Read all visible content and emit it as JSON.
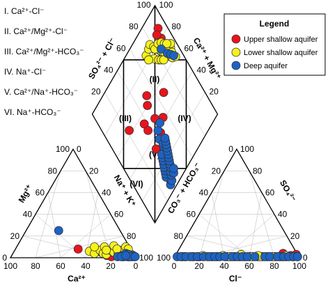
{
  "chart_data": {
    "type": "scatter",
    "subtype": "piper-diagram",
    "hydrochemical_facies": [
      {
        "id": "hf-1",
        "text": "I. Ca²⁺-Cl⁻"
      },
      {
        "id": "hf-2",
        "text": "II. Ca²⁺/Mg²⁺-Cl⁻"
      },
      {
        "id": "hf-3",
        "text": "III. Ca²⁺/Mg²⁺-HCO₃⁻"
      },
      {
        "id": "hf-4",
        "text": "IV. Na⁺-Cl⁻"
      },
      {
        "id": "hf-5",
        "text": "V. Ca²⁺/Na⁺-HCO₃⁻"
      },
      {
        "id": "hf-6",
        "text": "VI. Na⁺-HCO₃⁻"
      }
    ],
    "field_labels": [
      "(I)",
      "(II)",
      "(III)",
      "(IV)",
      "(V)",
      "(VI)"
    ],
    "axis_titles": {
      "cation_x": "Ca²⁺",
      "cation_side": "Mg²⁺",
      "cation_right": "Na⁺ + K⁺",
      "anion_x": "Cl⁻",
      "anion_side": "SO₄²⁻",
      "anion_left": "CO₃⁻ + HCO₃⁻",
      "diamond_left": "SO₄²⁻ + Cl⁻",
      "diamond_right": "Ca²⁺ + Mg²⁺"
    },
    "ticks": [
      "0",
      "20",
      "40",
      "60",
      "80",
      "100"
    ],
    "legend": {
      "title": "Legend",
      "placement": "top-right",
      "entries": [
        {
          "label": "Upper shallow aquifer",
          "color": "#e8141c"
        },
        {
          "label": "Lower shallow aquifer",
          "color": "#f7f21a"
        },
        {
          "label": "Deep aquifer",
          "color": "#1c63c6"
        }
      ]
    },
    "series": [
      {
        "name": "Upper shallow aquifer",
        "color": "#e8141c",
        "cation_points": [
          [
            70,
            5
          ],
          [
            75,
            6
          ],
          [
            76,
            2
          ],
          [
            82,
            3
          ],
          [
            86,
            4
          ],
          [
            90,
            5
          ],
          [
            93,
            2
          ],
          [
            50,
            8
          ],
          [
            80,
            1
          ],
          [
            89,
            1
          ],
          [
            95,
            2
          ],
          [
            84,
            3
          ],
          [
            74,
            5
          ],
          [
            93,
            1
          ]
        ],
        "anion_points": [
          [
            8,
            1
          ],
          [
            20,
            1
          ],
          [
            34,
            1
          ],
          [
            48,
            1
          ],
          [
            60,
            1
          ],
          [
            70,
            1
          ],
          [
            80,
            1
          ],
          [
            89,
            1
          ],
          [
            96,
            3
          ],
          [
            92,
            2
          ],
          [
            15,
            1
          ],
          [
            42,
            1
          ],
          [
            66,
            1
          ],
          [
            85,
            4
          ]
        ],
        "diamond_points": [
          [
            48,
            60
          ],
          [
            52,
            65
          ],
          [
            37,
            54
          ],
          [
            55,
            42
          ],
          [
            48,
            48
          ],
          [
            67,
            53
          ],
          [
            90,
            80
          ],
          [
            92,
            87
          ],
          [
            88,
            85
          ],
          [
            85,
            75
          ],
          [
            83,
            70
          ],
          [
            22,
            63
          ],
          [
            37,
            48
          ],
          [
            35,
            33
          ],
          [
            46,
            37
          ]
        ]
      },
      {
        "name": "Lower shallow aquifer",
        "color": "#f7f21a",
        "cation_points": [
          [
            60,
            6
          ],
          [
            65,
            4
          ],
          [
            68,
            7
          ],
          [
            72,
            4
          ],
          [
            75,
            3
          ],
          [
            78,
            6
          ],
          [
            80,
            5
          ],
          [
            84,
            4
          ],
          [
            86,
            2
          ],
          [
            88,
            5
          ],
          [
            90,
            3
          ],
          [
            92,
            2
          ],
          [
            94,
            1
          ],
          [
            96,
            2
          ],
          [
            84,
            7
          ],
          [
            70,
            10
          ],
          [
            62,
            10
          ],
          [
            77,
            11
          ],
          [
            91,
            6
          ],
          [
            81,
            8
          ],
          [
            73,
            7
          ],
          [
            95,
            3
          ],
          [
            87,
            10
          ],
          [
            90,
            8
          ]
        ],
        "anion_points": [
          [
            6,
            1
          ],
          [
            12,
            1
          ],
          [
            18,
            1
          ],
          [
            26,
            1
          ],
          [
            30,
            1
          ],
          [
            38,
            2
          ],
          [
            44,
            1
          ],
          [
            52,
            1
          ],
          [
            56,
            1
          ],
          [
            62,
            1
          ],
          [
            68,
            1
          ],
          [
            74,
            1
          ],
          [
            78,
            1
          ],
          [
            84,
            1
          ],
          [
            88,
            2
          ],
          [
            94,
            1
          ],
          [
            98,
            1
          ],
          [
            52,
            3
          ],
          [
            22,
            2
          ],
          [
            66,
            2
          ],
          [
            86,
            1
          ]
        ],
        "diamond_points": [
          [
            70,
            84
          ],
          [
            75,
            85
          ],
          [
            78,
            86
          ],
          [
            80,
            82
          ],
          [
            82,
            78
          ],
          [
            83,
            76
          ],
          [
            84,
            74
          ],
          [
            85,
            72
          ],
          [
            86,
            70
          ],
          [
            88,
            66
          ],
          [
            89,
            64
          ],
          [
            90,
            62
          ],
          [
            75,
            76
          ],
          [
            78,
            72
          ],
          [
            80,
            70
          ],
          [
            82,
            68
          ],
          [
            85,
            76
          ],
          [
            87,
            74
          ],
          [
            89,
            72
          ],
          [
            91,
            70
          ],
          [
            93,
            68
          ],
          [
            95,
            70
          ],
          [
            80,
            80
          ],
          [
            85,
            80
          ],
          [
            88,
            78
          ],
          [
            90,
            75
          ],
          [
            92,
            73
          ],
          [
            70,
            80
          ],
          [
            92,
            65
          ],
          [
            93,
            60
          ]
        ]
      },
      {
        "name": "Deep aquifer",
        "color": "#1c63c6",
        "cation_points": [
          [
            26,
            25
          ],
          [
            85,
            1
          ],
          [
            88,
            2
          ],
          [
            90,
            4
          ],
          [
            92,
            3
          ],
          [
            94,
            2
          ],
          [
            96,
            1
          ],
          [
            97,
            2
          ],
          [
            98,
            1
          ],
          [
            90,
            1
          ],
          [
            93,
            3
          ],
          [
            95,
            1
          ],
          [
            99,
            1
          ],
          [
            88,
            1
          ],
          [
            91,
            2
          ]
        ],
        "anion_points": [
          [
            2,
            1
          ],
          [
            5,
            1
          ],
          [
            9,
            1
          ],
          [
            14,
            1
          ],
          [
            18,
            1
          ],
          [
            23,
            1
          ],
          [
            28,
            1
          ],
          [
            32,
            1
          ],
          [
            36,
            1
          ],
          [
            40,
            1
          ],
          [
            46,
            1
          ],
          [
            50,
            1
          ],
          [
            54,
            1
          ],
          [
            58,
            1
          ],
          [
            64,
            1
          ],
          [
            72,
            1
          ],
          [
            76,
            1
          ],
          [
            82,
            1
          ],
          [
            87,
            1
          ],
          [
            91,
            1
          ],
          [
            95,
            1
          ],
          [
            98,
            1
          ]
        ],
        "diamond_points": [
          [
            45,
            40
          ],
          [
            50,
            42
          ],
          [
            42,
            35
          ],
          [
            30,
            5
          ],
          [
            32,
            8
          ],
          [
            33,
            10
          ],
          [
            34,
            12
          ],
          [
            35,
            14
          ],
          [
            36,
            16
          ],
          [
            37,
            18
          ],
          [
            38,
            20
          ],
          [
            39,
            22
          ],
          [
            40,
            24
          ],
          [
            41,
            26
          ],
          [
            42,
            28
          ],
          [
            43,
            30
          ],
          [
            30,
            12
          ],
          [
            31,
            14
          ],
          [
            32,
            16
          ],
          [
            33,
            18
          ],
          [
            34,
            20
          ],
          [
            35,
            22
          ],
          [
            36,
            24
          ],
          [
            37,
            26
          ],
          [
            33,
            6
          ],
          [
            35,
            9
          ],
          [
            36,
            11
          ],
          [
            38,
            13
          ],
          [
            39,
            15
          ],
          [
            40,
            17
          ],
          [
            41,
            19
          ],
          [
            42,
            21
          ],
          [
            43,
            23
          ],
          [
            44,
            25
          ],
          [
            45,
            27
          ],
          [
            46,
            29
          ],
          [
            47,
            31
          ],
          [
            38,
            8
          ],
          [
            40,
            10
          ],
          [
            85,
            75
          ],
          [
            88,
            68
          ],
          [
            90,
            65
          ],
          [
            92,
            62
          ]
        ]
      }
    ]
  }
}
